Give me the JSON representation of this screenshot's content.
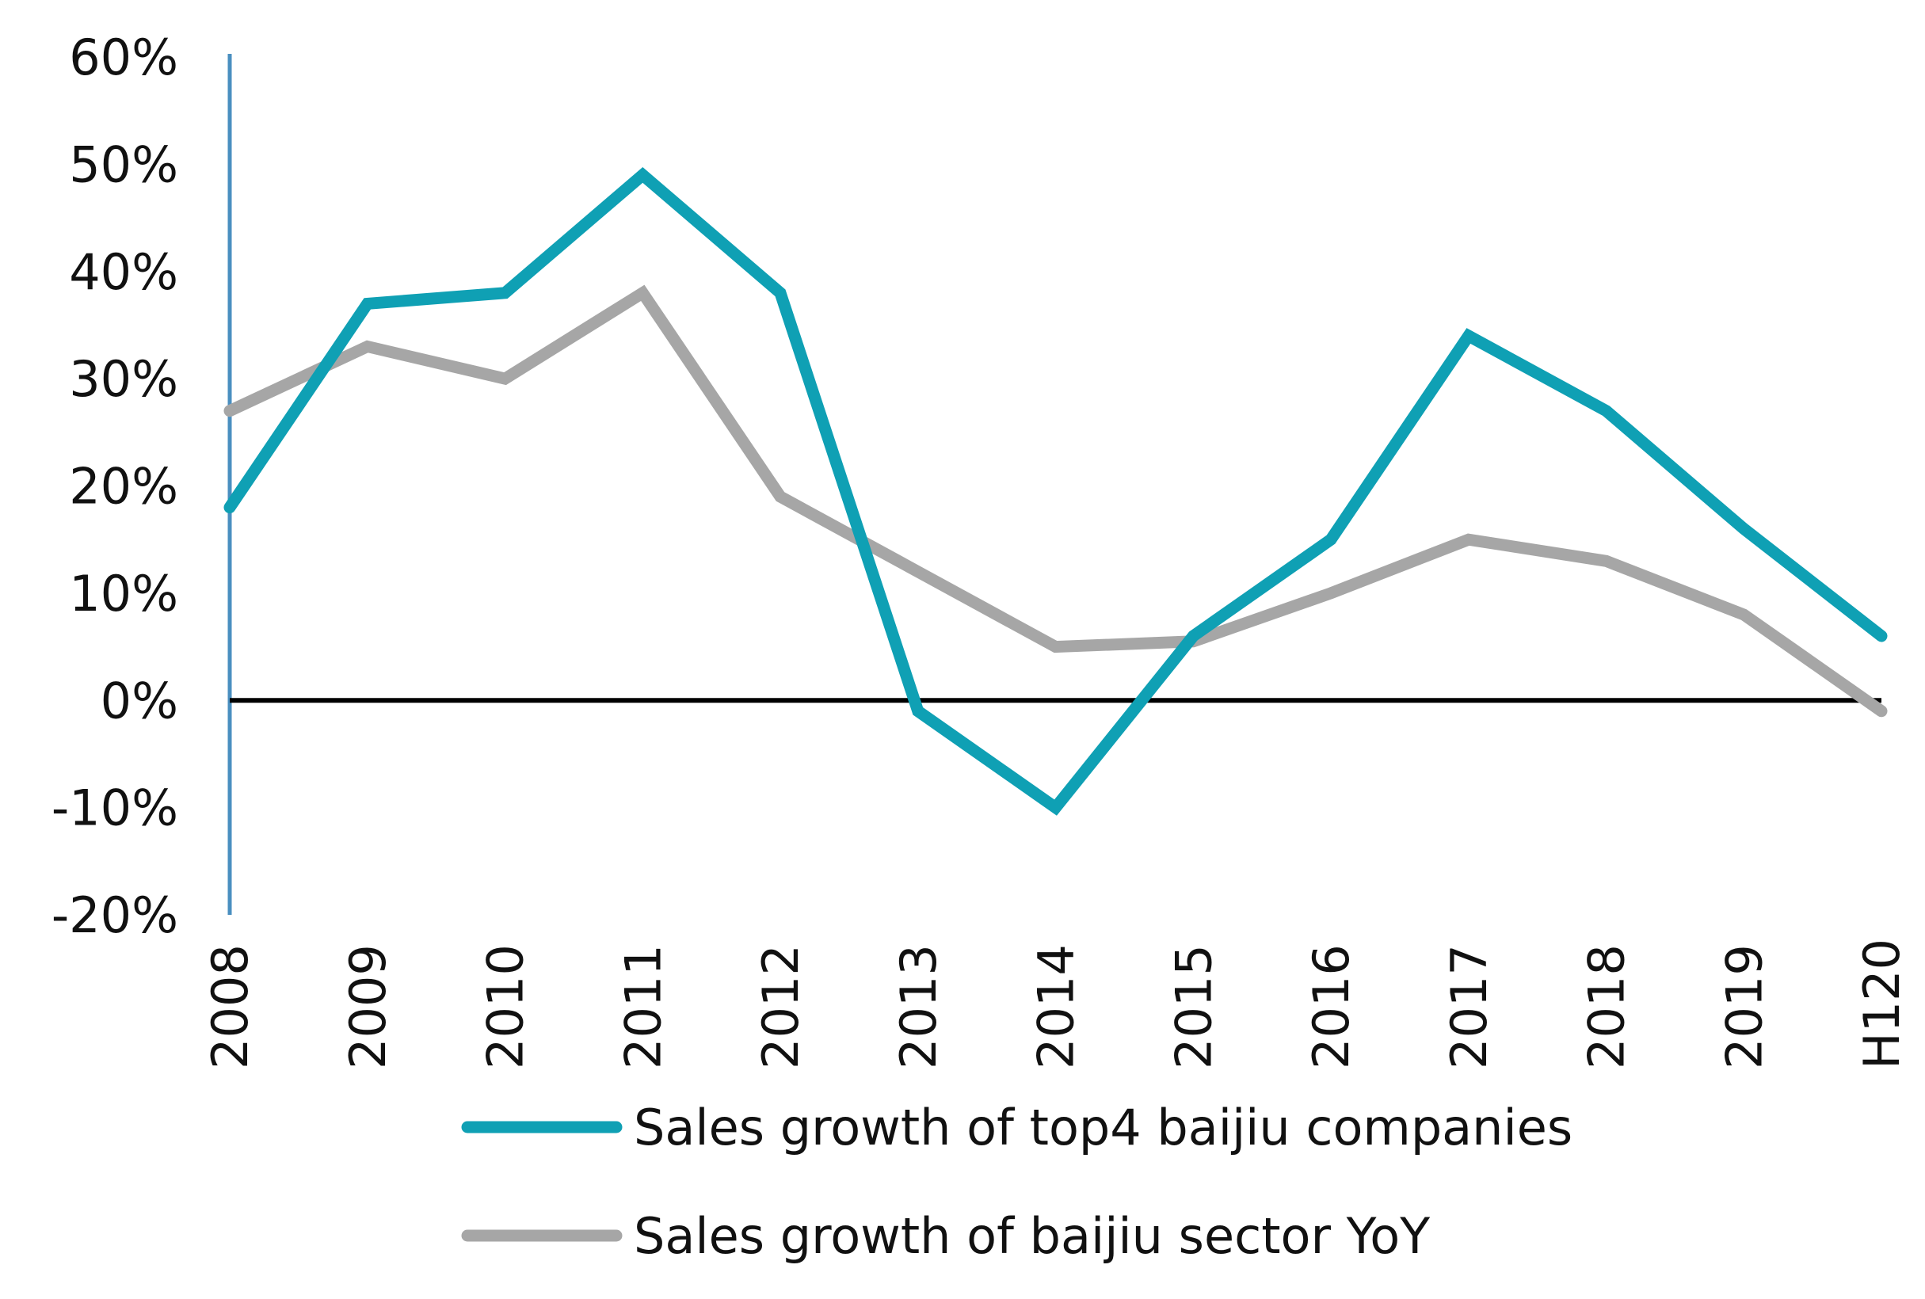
{
  "chart_data": {
    "type": "line",
    "categories": [
      "2008",
      "2009",
      "2010",
      "2011",
      "2012",
      "2013",
      "2014",
      "2015",
      "2016",
      "2017",
      "2018",
      "2019",
      "H120"
    ],
    "series": [
      {
        "name": "Sales growth of top4 baijiu companies",
        "color": "#0fa0b4",
        "values": [
          18,
          37,
          38,
          49,
          38,
          -1,
          -10,
          6,
          15,
          34,
          27,
          16,
          6
        ]
      },
      {
        "name": "Sales growth of baijiu sector YoY",
        "color": "#a6a6a6",
        "values": [
          27,
          33,
          30,
          38,
          19,
          12,
          5,
          5.5,
          10,
          15,
          13,
          8,
          -1
        ]
      }
    ],
    "ylim": [
      -20,
      60
    ],
    "yticks": [
      "60%",
      "50%",
      "40%",
      "30%",
      "20%",
      "10%",
      "0%",
      "-10%",
      "-20%"
    ],
    "ytick_values": [
      60,
      50,
      40,
      30,
      20,
      10,
      0,
      -10,
      -20
    ],
    "zero_line_color": "#000000",
    "y_axis_color": "#4a8fc0",
    "grid": false,
    "legend_position": "bottom"
  }
}
